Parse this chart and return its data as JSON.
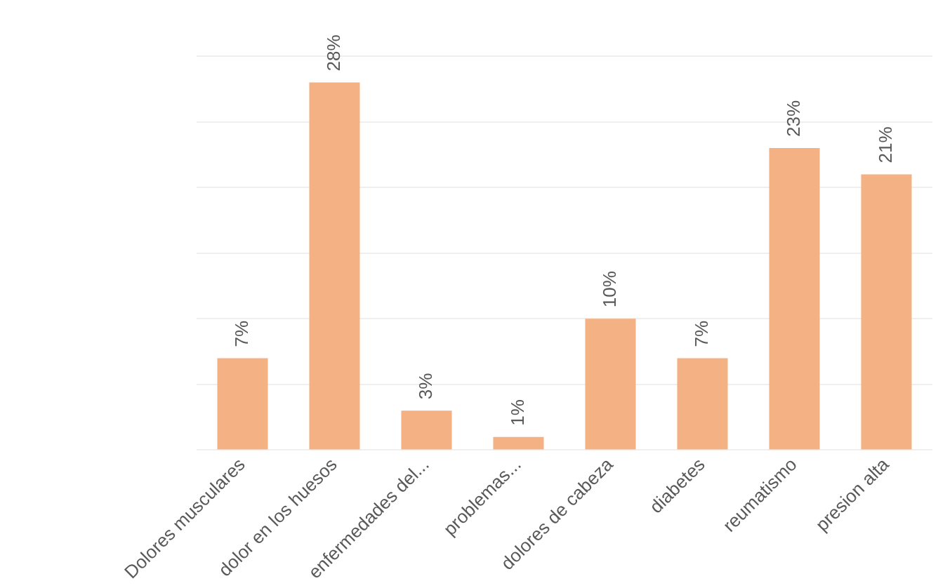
{
  "chart_data": {
    "type": "bar",
    "categories": [
      "Dolores musculares",
      "dolor en los huesos",
      "enfermedades del...",
      "problemas...",
      "dolores de cabeza",
      "diabetes",
      "reumatismo",
      "presion alta"
    ],
    "values": [
      7,
      28,
      3,
      1,
      10,
      7,
      23,
      21
    ],
    "value_labels": [
      "7%",
      "28%",
      "3%",
      "1%",
      "10%",
      "7%",
      "23%",
      "21%"
    ],
    "color": "#f4b183",
    "ylim": [
      0,
      30
    ],
    "yticks": [
      0,
      5,
      10,
      15,
      20,
      25,
      30
    ],
    "grid": "y",
    "tick_labels": "x",
    "legend": false
  }
}
